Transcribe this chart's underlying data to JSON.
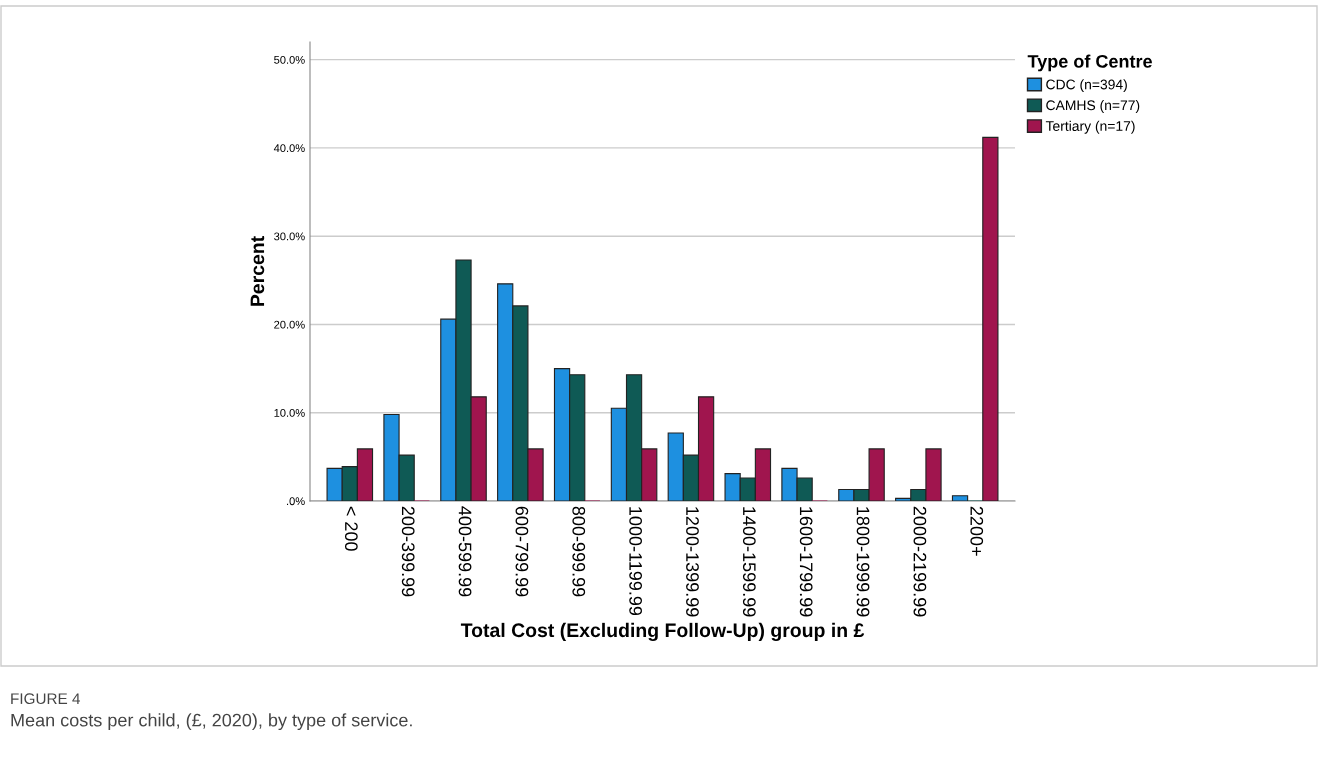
{
  "chart_data": {
    "type": "bar",
    "xlabel": "Total Cost (Excluding Follow-Up) group in £",
    "ylabel": "Percent",
    "legend_title": "Type of Centre",
    "categories": [
      "< 200",
      "200-399.99",
      "400-599.99",
      "600-799.99",
      "800-999.99",
      "1000-1199.99",
      "1200-1399.99",
      "1400-1599.99",
      "1600-1799.99",
      "1800-1999.99",
      "2000-2199.99",
      "2200+"
    ],
    "series": [
      {
        "name": "CDC (n=394)",
        "color": "#1e90e0",
        "values": [
          3.7,
          9.8,
          20.6,
          24.6,
          15.0,
          10.5,
          7.7,
          3.1,
          3.7,
          1.3,
          0.3,
          0.6
        ]
      },
      {
        "name": "CAMHS (n=77)",
        "color": "#0f5a55",
        "values": [
          3.9,
          5.2,
          27.3,
          22.1,
          14.3,
          14.3,
          5.2,
          2.6,
          2.6,
          1.3,
          1.3,
          0
        ]
      },
      {
        "name": "Tertiary (n=17)",
        "color": "#a0154e",
        "values": [
          5.9,
          0,
          11.8,
          5.9,
          0,
          5.9,
          11.8,
          5.9,
          0,
          5.9,
          5.9,
          41.2
        ]
      }
    ],
    "ylim": [
      0,
      52
    ],
    "yticks": [
      {
        "value": 0,
        "label": ".0%"
      },
      {
        "value": 10,
        "label": "10.0%"
      },
      {
        "value": 20,
        "label": "20.0%"
      },
      {
        "value": 30,
        "label": "30.0%"
      },
      {
        "value": 40,
        "label": "40.0%"
      },
      {
        "value": 50,
        "label": "50.0%"
      }
    ],
    "grid": "y",
    "legend": "top right",
    "annotations": [
      "FIGURE 4",
      "Mean costs per child, (£, 2020), by type of service."
    ]
  }
}
